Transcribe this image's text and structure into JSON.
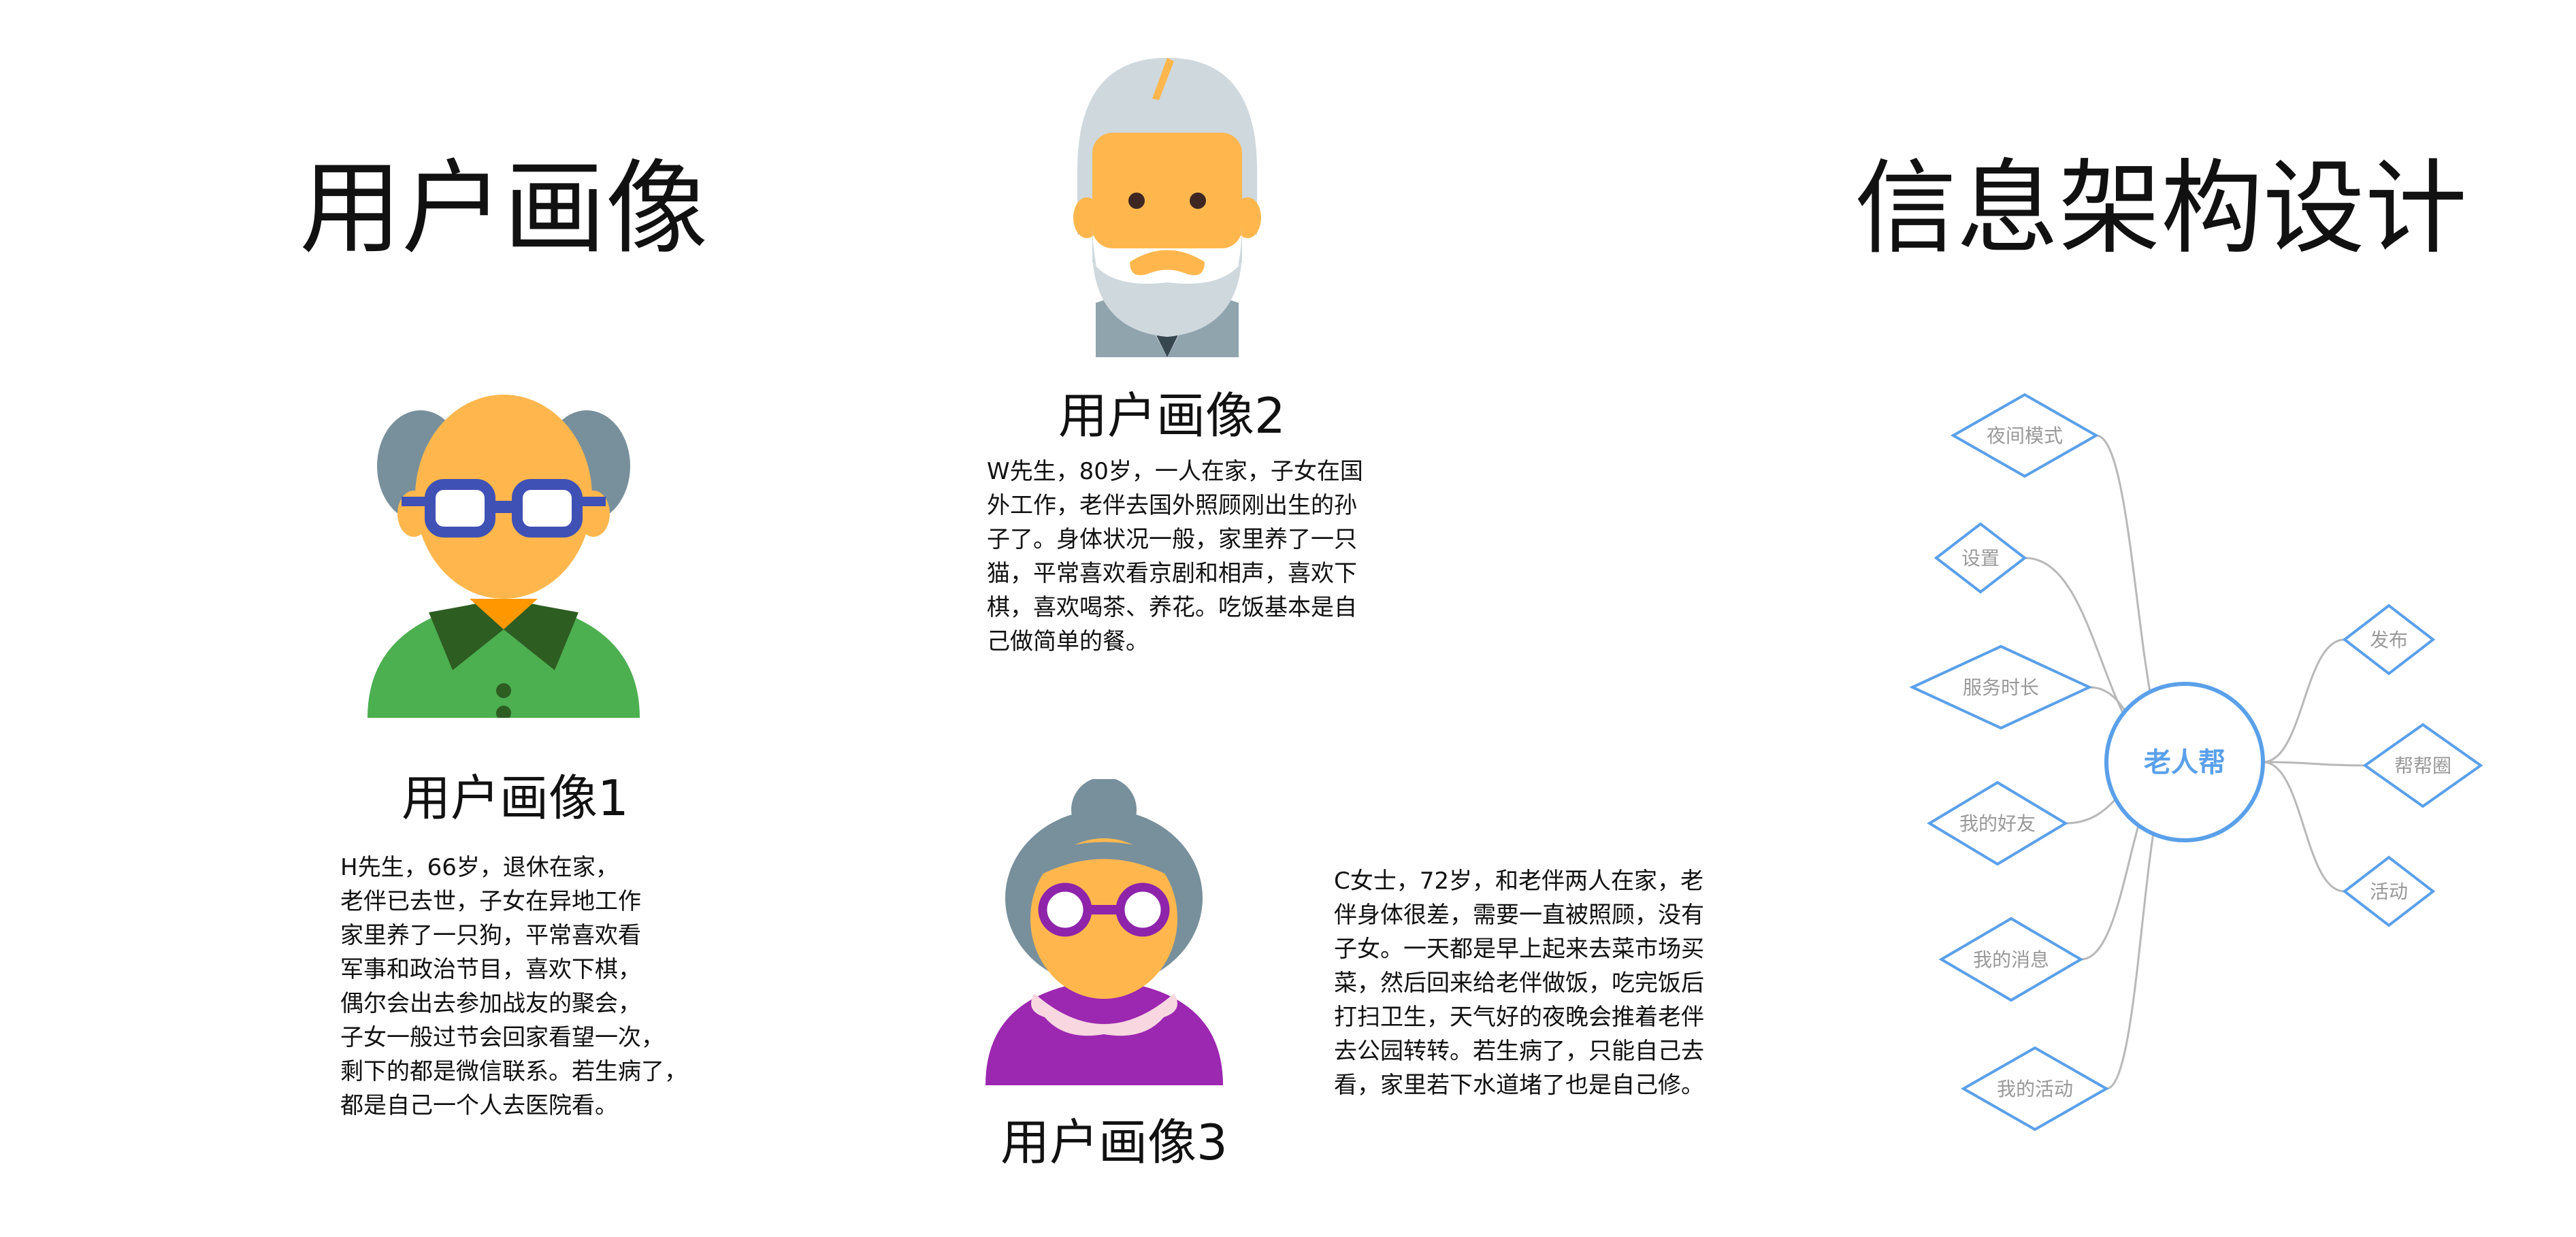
{
  "left_section": {
    "title": "用户画像"
  },
  "right_section": {
    "title": "信息架构设计"
  },
  "personas": [
    {
      "name": "用户画像1",
      "avatar": "elderly-man-glasses-icon",
      "lines": [
        "H先生，66岁，退休在家，",
        "老伴已去世，子女在异地工作",
        "家里养了一只狗，平常喜欢看",
        "军事和政治节目，喜欢下棋，",
        "偶尔会出去参加战友的聚会，",
        "子女一般过节会回家看望一次，",
        "剩下的都是微信联系。若生病了，",
        "都是自己一个人去医院看。"
      ]
    },
    {
      "name": "用户画像2",
      "avatar": "elderly-man-beard-icon",
      "lines": [
        "W先生，80岁，一人在家，子女在国",
        "外工作，老伴去国外照顾刚出生的孙",
        "子了。身体状况一般，家里养了一只",
        "猫，平常喜欢看京剧和相声，喜欢下",
        "棋，喜欢喝茶、养花。吃饭基本是自",
        "己做简单的餐。"
      ]
    },
    {
      "name": "用户画像3",
      "avatar": "elderly-woman-glasses-icon",
      "lines": [
        "C女士，72岁，和老伴两人在家，老",
        "伴身体很差，需要一直被照顾，没有",
        "子女。一天都是早上起来去菜市场买",
        "菜，然后回来给老伴做饭，吃完饭后",
        "打扫卫生，天气好的夜晚会推着老伴",
        "去公园转转。若生病了，只能自己去",
        "看，家里若下水道堵了也是自己修。"
      ]
    }
  ],
  "mind_map": {
    "center": "老人帮",
    "left_nodes": [
      "夜间模式",
      "设置",
      "服务时长",
      "我的好友",
      "我的消息",
      "我的活动"
    ],
    "right_nodes": [
      "发布",
      "帮帮圈",
      "活动"
    ],
    "colors": {
      "accent": "#5aa0ea",
      "node_text": "#999999",
      "connector": "#b8b8b8"
    }
  },
  "colors": {
    "skin": "#ffb74d",
    "hair_gray": "#78909c",
    "hair_light": "#cfd8dc",
    "shirt_green": "#4caf50",
    "collar_dark_green": "#2e5d22",
    "glasses_blue": "#3f51b5",
    "dress_purple": "#9c27b0",
    "glasses_purple": "#8e24aa"
  }
}
